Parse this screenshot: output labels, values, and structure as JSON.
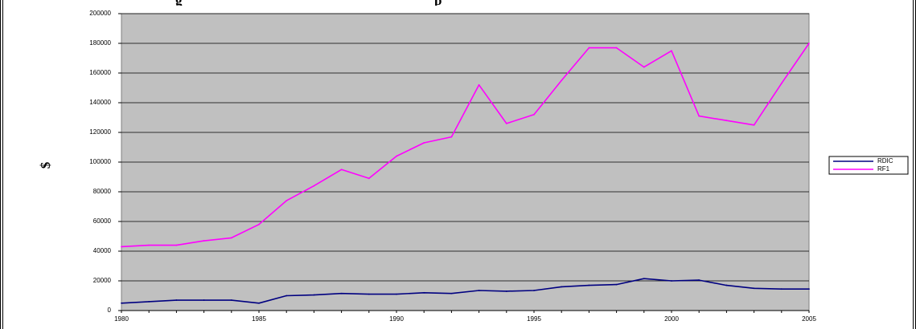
{
  "header": {
    "title_left_fragment": "g",
    "title_right_fragment": "p"
  },
  "chart_data": {
    "type": "line",
    "title": "",
    "xlabel": "",
    "ylabel": "$",
    "xlim": [
      1980,
      2005
    ],
    "ylim": [
      0,
      200000
    ],
    "grid": true,
    "legend_position": "right",
    "plot_background": "#c0c0c0",
    "x": [
      1980,
      1981,
      1982,
      1983,
      1984,
      1985,
      1986,
      1987,
      1988,
      1989,
      1990,
      1991,
      1992,
      1993,
      1994,
      1995,
      1996,
      1997,
      1998,
      1999,
      2000,
      2001,
      2002,
      2003,
      2004,
      2005
    ],
    "x_ticks": [
      "1980",
      "1985",
      "1990",
      "1995",
      "2000",
      "2005"
    ],
    "y_ticks": [
      "0",
      "20000",
      "40000",
      "60000",
      "80000",
      "100000",
      "120000",
      "140000",
      "160000",
      "180000",
      "200000"
    ],
    "series": [
      {
        "name": "RDIC",
        "color": "#000080",
        "values": [
          5000,
          6000,
          7000,
          7000,
          7000,
          5000,
          10000,
          10500,
          11500,
          11000,
          11000,
          12000,
          11500,
          13500,
          13000,
          13500,
          16000,
          17000,
          17500,
          21500,
          20000,
          20500,
          17000,
          15000,
          14500,
          14500
        ]
      },
      {
        "name": "RF1",
        "color": "#ff00ff",
        "values": [
          43000,
          44000,
          44000,
          47000,
          49000,
          58000,
          74000,
          84000,
          95000,
          89000,
          104000,
          113000,
          117000,
          152000,
          126000,
          132000,
          155000,
          177000,
          177000,
          164000,
          175000,
          131000,
          128000,
          125000,
          153000,
          180000
        ]
      }
    ]
  }
}
